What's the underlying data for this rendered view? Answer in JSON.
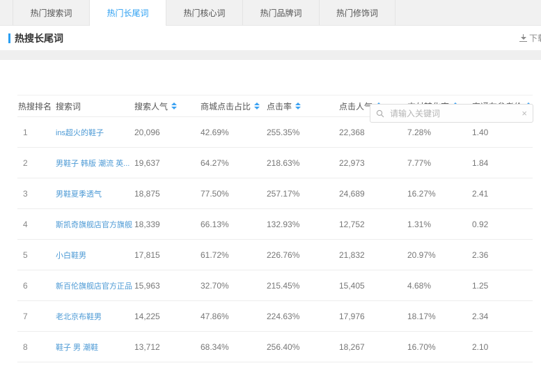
{
  "tabs": [
    {
      "label": "热门搜索词",
      "active": false
    },
    {
      "label": "热门长尾词",
      "active": true
    },
    {
      "label": "热门核心词",
      "active": false
    },
    {
      "label": "热门品牌词",
      "active": false
    },
    {
      "label": "热门修饰词",
      "active": false
    }
  ],
  "section": {
    "title": "热搜长尾词",
    "download_label": "下载"
  },
  "search": {
    "placeholder": "请输入关键词",
    "clear_icon": "×"
  },
  "table": {
    "columns": [
      {
        "key": "rank",
        "label": "热搜排名",
        "sortable": false,
        "cls": "c-rank"
      },
      {
        "key": "keyword",
        "label": "搜索词",
        "sortable": false,
        "cls": "c-keyword"
      },
      {
        "key": "search_popularity",
        "label": "搜索人气",
        "sortable": true,
        "cls": "c-sp"
      },
      {
        "key": "mall_click_ratio",
        "label": "商城点击占比",
        "sortable": true,
        "cls": "c-mall"
      },
      {
        "key": "click_rate",
        "label": "点击率",
        "sortable": true,
        "cls": "c-cr"
      },
      {
        "key": "click_popularity",
        "label": "点击人气",
        "sortable": true,
        "cls": "c-cp"
      },
      {
        "key": "pay_conversion",
        "label": "支付转化率",
        "sortable": true,
        "cls": "c-pc"
      },
      {
        "key": "ztc_price",
        "label": "直通车参考价",
        "sortable": true,
        "cls": "c-ztc"
      }
    ],
    "rows": [
      {
        "rank": "1",
        "keyword": "ins超火的鞋子",
        "search_popularity": "20,096",
        "mall_click_ratio": "42.69%",
        "click_rate": "255.35%",
        "click_popularity": "22,368",
        "pay_conversion": "7.28%",
        "ztc_price": "1.40"
      },
      {
        "rank": "2",
        "keyword": "男鞋子 韩版 潮流 英...",
        "search_popularity": "19,637",
        "mall_click_ratio": "64.27%",
        "click_rate": "218.63%",
        "click_popularity": "22,973",
        "pay_conversion": "7.77%",
        "ztc_price": "1.84"
      },
      {
        "rank": "3",
        "keyword": "男鞋夏季透气",
        "search_popularity": "18,875",
        "mall_click_ratio": "77.50%",
        "click_rate": "257.17%",
        "click_popularity": "24,689",
        "pay_conversion": "16.27%",
        "ztc_price": "2.41"
      },
      {
        "rank": "4",
        "keyword": "斯凯奇旗舰店官方旗舰",
        "search_popularity": "18,339",
        "mall_click_ratio": "66.13%",
        "click_rate": "132.93%",
        "click_popularity": "12,752",
        "pay_conversion": "1.31%",
        "ztc_price": "0.92"
      },
      {
        "rank": "5",
        "keyword": "小白鞋男",
        "search_popularity": "17,815",
        "mall_click_ratio": "61.72%",
        "click_rate": "226.76%",
        "click_popularity": "21,832",
        "pay_conversion": "20.97%",
        "ztc_price": "2.36"
      },
      {
        "rank": "6",
        "keyword": "新百伦旗舰店官方正品",
        "search_popularity": "15,963",
        "mall_click_ratio": "32.70%",
        "click_rate": "215.45%",
        "click_popularity": "15,405",
        "pay_conversion": "4.68%",
        "ztc_price": "1.25"
      },
      {
        "rank": "7",
        "keyword": "老北京布鞋男",
        "search_popularity": "14,225",
        "mall_click_ratio": "47.86%",
        "click_rate": "224.63%",
        "click_popularity": "17,976",
        "pay_conversion": "18.17%",
        "ztc_price": "2.34"
      },
      {
        "rank": "8",
        "keyword": "鞋子 男 潮鞋",
        "search_popularity": "13,712",
        "mall_click_ratio": "68.34%",
        "click_rate": "256.40%",
        "click_popularity": "18,267",
        "pay_conversion": "16.70%",
        "ztc_price": "2.10"
      }
    ]
  },
  "colors": {
    "accent_blue": "#2b9ff2",
    "link_blue": "#4d9ad5",
    "tab_bar_bg": "#f1f1f1",
    "row_border": "#ededed",
    "text_dark": "#333333",
    "text_gray": "#666666"
  }
}
